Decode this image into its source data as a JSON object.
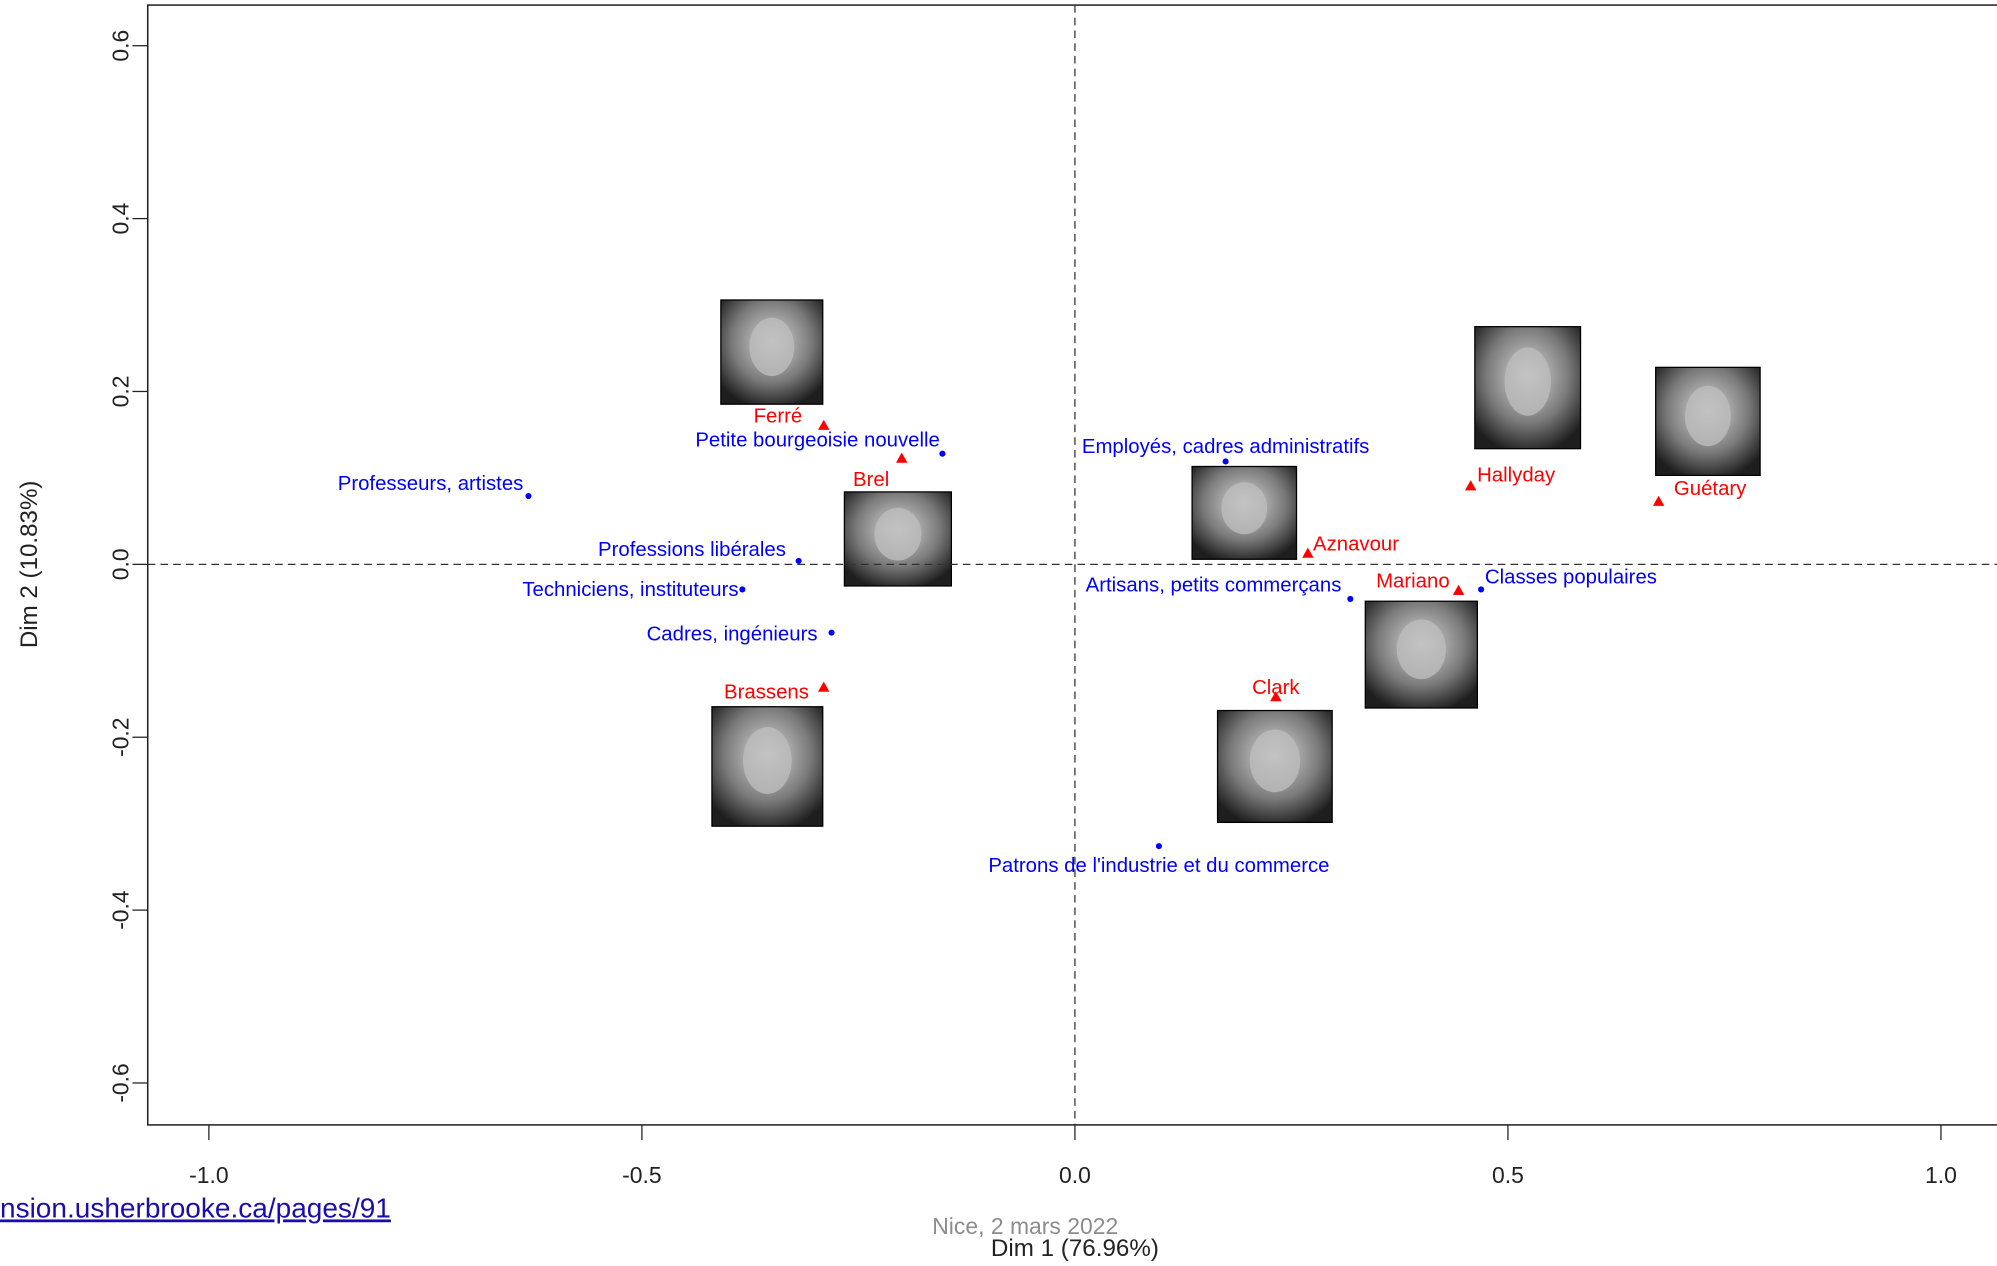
{
  "chart_data": {
    "type": "scatter",
    "x_label": "Dim 1 (76.96%)",
    "y_label": "Dim 2 (10.83%)",
    "xlim": [
      -1.0706,
      1.0647
    ],
    "ylim": [
      -0.6485,
      0.647
    ],
    "xticks": [
      {
        "value": -1.0,
        "label": "-1.0"
      },
      -0.5,
      {
        "value": 0.0,
        "label": "0.0"
      },
      0.5,
      {
        "value": 1.0,
        "label": "1.0"
      }
    ],
    "yticks": [
      -0.6,
      -0.4,
      -0.2,
      {
        "value": 0.0,
        "label": "0.0"
      },
      0.2,
      0.4,
      0.6
    ],
    "series": [
      {
        "color": "#0000ff",
        "marker": "circle",
        "labels": [
          "Professeurs, artistes",
          "Petite bourgeoisie nouvelle",
          "Professions libérales",
          "Techniciens, instituteurs",
          "Cadres, ingénieurs",
          "Employés, cadres administratifs",
          "Artisans, petits commerçans",
          "Classes populaires",
          "Patrons de l'industrie et du commerce"
        ],
        "x": [
          -0.631,
          -0.153,
          -0.319,
          -0.384,
          -0.281,
          0.174,
          0.318,
          0.469,
          0.097
        ],
        "y": [
          0.079,
          0.128,
          0.004,
          -0.029,
          -0.079,
          0.119,
          -0.04,
          -0.029,
          -0.326
        ]
      },
      {
        "color": "#ff0000",
        "marker": "triangle",
        "labels": [
          "Ferré",
          "Brel",
          "Brassens",
          "Aznavour",
          "Hallyday",
          "Guétary",
          "Mariano",
          "Clark"
        ],
        "x": [
          -0.29,
          -0.2,
          -0.29,
          0.269,
          0.457,
          0.674,
          0.443,
          0.232
        ],
        "y": [
          0.16,
          0.122,
          -0.143,
          0.012,
          0.09,
          0.072,
          -0.031,
          -0.154
        ]
      }
    ],
    "reference_lines": true
  },
  "footer": {
    "link": "nsion.usherbrooke.ca/pages/91",
    "note": "Nice, 2 mars 2022"
  }
}
